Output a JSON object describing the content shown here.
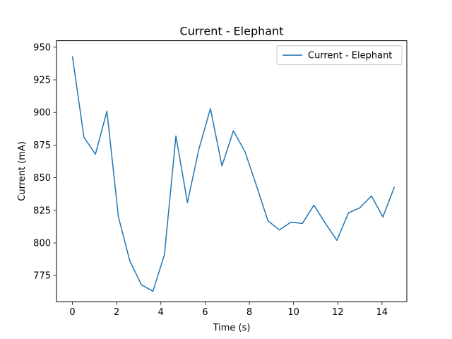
{
  "chart_data": {
    "type": "line",
    "title": "Current - Elephant",
    "xlabel": "Time (s)",
    "ylabel": "Current (mA)",
    "xlim": [
      -0.72,
      15.12
    ],
    "ylim": [
      755,
      955
    ],
    "xticks": [
      0,
      2,
      4,
      6,
      8,
      10,
      12,
      14
    ],
    "yticks": [
      775,
      800,
      825,
      850,
      875,
      900,
      925,
      950
    ],
    "grid": false,
    "legend_position": "top-right",
    "series": [
      {
        "name": "Current - Elephant",
        "color": "#1f77b4",
        "x": [
          0,
          0.52,
          1.04,
          1.56,
          2.08,
          2.6,
          3.12,
          3.64,
          4.16,
          4.68,
          5.2,
          5.72,
          6.24,
          6.76,
          7.28,
          7.8,
          8.32,
          8.84,
          9.36,
          9.88,
          10.4,
          10.92,
          11.44,
          11.96,
          12.48,
          13.0,
          13.52,
          14.04,
          14.56
        ],
        "y": [
          943,
          881,
          868,
          901,
          820,
          786,
          768,
          763,
          791,
          882,
          831,
          872,
          903,
          859,
          886,
          870,
          844,
          817,
          810,
          816,
          815,
          829,
          815,
          802,
          823,
          827,
          836,
          820,
          843
        ]
      }
    ]
  }
}
